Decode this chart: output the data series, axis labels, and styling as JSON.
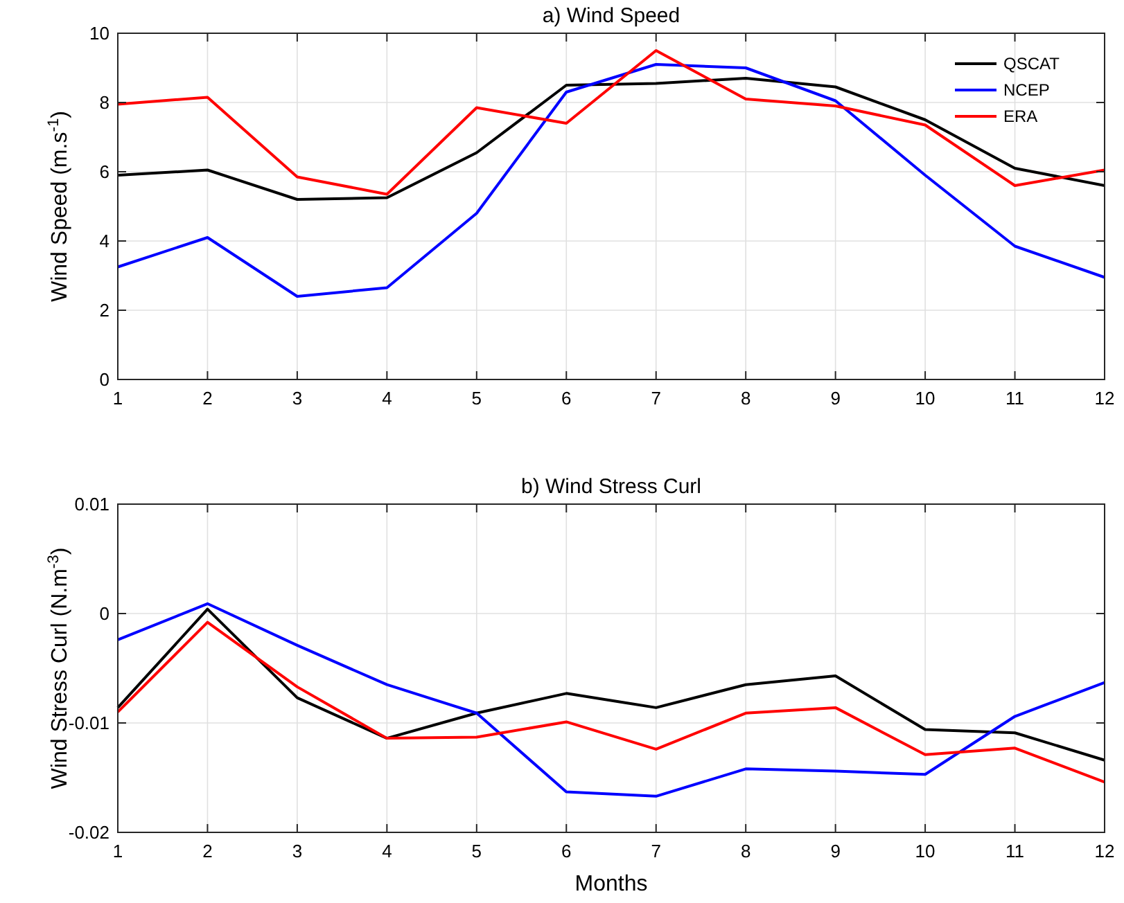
{
  "chart_data": [
    {
      "type": "line",
      "title": "a) Wind Speed",
      "ylabel": "Wind Speed (m.s$^{-1}$)",
      "x": [
        1,
        2,
        3,
        4,
        5,
        6,
        7,
        8,
        9,
        10,
        11,
        12
      ],
      "xlim": [
        1,
        12
      ],
      "xticks": [
        1,
        2,
        3,
        4,
        5,
        6,
        7,
        8,
        9,
        10,
        11,
        12
      ],
      "ylim": [
        0,
        10
      ],
      "yticks": [
        0,
        2,
        4,
        6,
        8,
        10
      ],
      "grid": true,
      "legend": "top right",
      "series": [
        {
          "name": "QSCAT",
          "color": "#000000",
          "values": [
            5.9,
            6.05,
            5.2,
            5.25,
            6.55,
            8.5,
            8.55,
            8.7,
            8.45,
            7.5,
            6.1,
            5.6
          ]
        },
        {
          "name": "NCEP",
          "color": "#0000ff",
          "values": [
            3.25,
            4.1,
            2.4,
            2.65,
            4.8,
            8.3,
            9.1,
            9.0,
            8.05,
            5.9,
            3.85,
            2.95
          ]
        },
        {
          "name": "ERA",
          "color": "#ff0000",
          "values": [
            7.95,
            8.15,
            5.85,
            5.35,
            7.85,
            7.4,
            9.5,
            8.1,
            7.9,
            7.35,
            5.6,
            6.05
          ]
        }
      ]
    },
    {
      "type": "line",
      "title": "b) Wind Stress Curl",
      "xlabel": "Months",
      "ylabel": "Wind Stress Curl (N.m$^{-3}$)",
      "x": [
        1,
        2,
        3,
        4,
        5,
        6,
        7,
        8,
        9,
        10,
        11,
        12
      ],
      "xlim": [
        1,
        12
      ],
      "xticks": [
        1,
        2,
        3,
        4,
        5,
        6,
        7,
        8,
        9,
        10,
        11,
        12
      ],
      "ylim": [
        -0.02,
        0.01
      ],
      "yticks": [
        {
          "value": -0.02,
          "label": "-0.02"
        },
        {
          "value": -0.01,
          "label": "-0.01"
        },
        0,
        0.01
      ],
      "grid": true,
      "series": [
        {
          "color": "#000000",
          "values": [
            -0.0086,
            0.0004,
            -0.0077,
            -0.0114,
            -0.0091,
            -0.0073,
            -0.0086,
            -0.0065,
            -0.0057,
            -0.0106,
            -0.0109,
            -0.0134
          ]
        },
        {
          "color": "#0000ff",
          "values": [
            -0.0024,
            0.0009,
            -0.0029,
            -0.0065,
            -0.0091,
            -0.0163,
            -0.0167,
            -0.0142,
            -0.0144,
            -0.0147,
            -0.0094,
            -0.0063
          ]
        },
        {
          "color": "#ff0000",
          "values": [
            -0.009,
            -0.0008,
            -0.0067,
            -0.0114,
            -0.0113,
            -0.0099,
            -0.0124,
            -0.0091,
            -0.0086,
            -0.0129,
            -0.0123,
            -0.0154
          ]
        }
      ]
    }
  ]
}
